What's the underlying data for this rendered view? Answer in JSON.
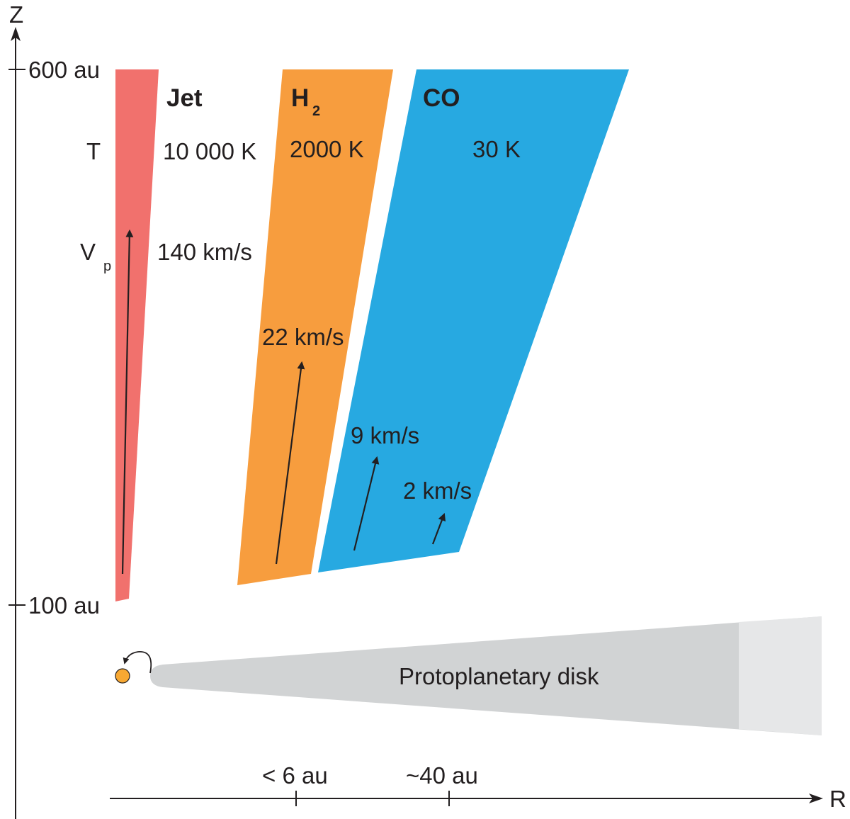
{
  "colors": {
    "jet": "#f1716d",
    "h2": "#f79d3e",
    "co": "#27a9e1",
    "disk": "#d1d3d4",
    "disk_outer": "#e6e7e8",
    "star": "#f7a833",
    "ink": "#231f20"
  },
  "axes": {
    "z_label": "Z",
    "r_label": "R",
    "z_top_label": "600 au",
    "z_bottom_label": "100 au",
    "r_tick_1": "< 6 au",
    "r_tick_2": "~40 au"
  },
  "row_labels": {
    "temperature": "T",
    "velocity_main": "V",
    "velocity_sub": "p"
  },
  "jet": {
    "title": "Jet",
    "temperature": "10 000 K",
    "velocity": "140 km/s"
  },
  "h2": {
    "title_main": "H",
    "title_sub": "2",
    "temperature": "2000 K",
    "velocity": "22 km/s"
  },
  "co": {
    "title": "CO",
    "temperature": "30 K",
    "velocity_inner": "9 km/s",
    "velocity_outer": "2 km/s"
  },
  "disk": {
    "label": "Protoplanetary disk"
  }
}
